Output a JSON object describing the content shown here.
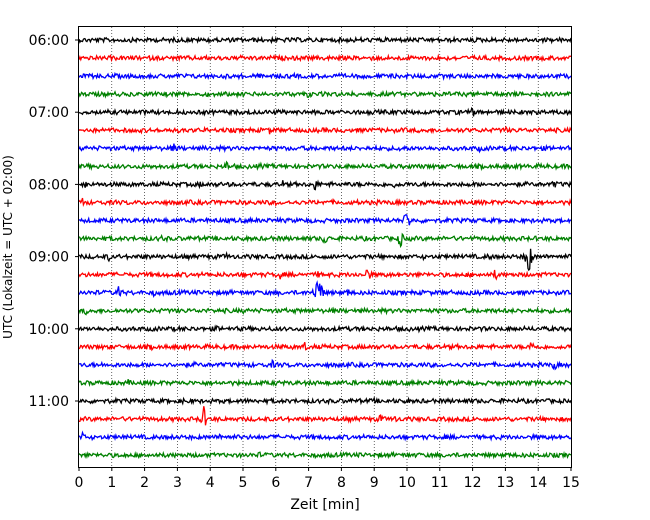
{
  "chart_data": {
    "type": "line",
    "xlabel": "Zeit  [min]",
    "ylabel": "UTC (Lokalzeit = UTC + 02:00)",
    "xlim": [
      0,
      15
    ],
    "x_ticks": [
      0,
      1,
      2,
      3,
      4,
      5,
      6,
      7,
      8,
      9,
      10,
      11,
      12,
      13,
      14,
      15
    ],
    "y_ticks": [
      "06:00",
      "07:00",
      "08:00",
      "09:00",
      "10:00",
      "11:00"
    ],
    "grid": "vertical-dotted",
    "trace_colors": [
      "#000000",
      "#ff0000",
      "#0000ff",
      "#008000"
    ],
    "traces": [
      {
        "start": "06:00",
        "color": "#000000",
        "events": [
          [
            4.0,
            4
          ],
          [
            6.3,
            3
          ],
          [
            13.0,
            3
          ]
        ]
      },
      {
        "start": "06:15",
        "color": "#ff0000",
        "events": [
          [
            10.2,
            4
          ],
          [
            7.8,
            3
          ],
          [
            3.0,
            3
          ]
        ]
      },
      {
        "start": "06:30",
        "color": "#0000ff",
        "events": [
          [
            4.0,
            3
          ],
          [
            9.5,
            3
          ],
          [
            11.5,
            3
          ]
        ]
      },
      {
        "start": "06:45",
        "color": "#008000",
        "events": [
          [
            7.0,
            6
          ],
          [
            12.0,
            3
          ],
          [
            3.0,
            3
          ]
        ]
      },
      {
        "start": "07:00",
        "color": "#000000",
        "events": [
          [
            12.0,
            6
          ],
          [
            2.0,
            3
          ],
          [
            8.5,
            3
          ]
        ]
      },
      {
        "start": "07:15",
        "color": "#ff0000",
        "events": [
          [
            1.8,
            4
          ],
          [
            5.8,
            5
          ],
          [
            13.0,
            5
          ]
        ]
      },
      {
        "start": "07:30",
        "color": "#0000ff",
        "events": [
          [
            2.9,
            7
          ],
          [
            4.0,
            4
          ],
          [
            9.8,
            6
          ],
          [
            12.2,
            4
          ]
        ]
      },
      {
        "start": "07:45",
        "color": "#008000",
        "events": [
          [
            4.5,
            6
          ],
          [
            5.5,
            5
          ],
          [
            9.0,
            3
          ]
        ]
      },
      {
        "start": "08:00",
        "color": "#000000",
        "events": [
          [
            0.2,
            5
          ],
          [
            3.7,
            4
          ],
          [
            6.2,
            5
          ],
          [
            7.2,
            8
          ],
          [
            9.6,
            4
          ],
          [
            14.5,
            6
          ]
        ]
      },
      {
        "start": "08:15",
        "color": "#ff0000",
        "events": [
          [
            0.1,
            6
          ],
          [
            1.5,
            3
          ],
          [
            6.0,
            3
          ]
        ]
      },
      {
        "start": "08:30",
        "color": "#0000ff",
        "events": [
          [
            10.0,
            14
          ],
          [
            2.0,
            3
          ],
          [
            14.0,
            3
          ]
        ]
      },
      {
        "start": "08:45",
        "color": "#008000",
        "events": [
          [
            2.5,
            5
          ],
          [
            7.5,
            8
          ],
          [
            9.8,
            10
          ],
          [
            11.5,
            3
          ]
        ]
      },
      {
        "start": "09:00",
        "color": "#000000",
        "events": [
          [
            0.9,
            5
          ],
          [
            4.5,
            4
          ],
          [
            12.5,
            6
          ],
          [
            13.7,
            22
          ],
          [
            10.5,
            3
          ]
        ]
      },
      {
        "start": "09:15",
        "color": "#ff0000",
        "events": [
          [
            6.1,
            8
          ],
          [
            7.3,
            4
          ],
          [
            8.8,
            10
          ],
          [
            12.7,
            7
          ],
          [
            3.0,
            3
          ]
        ]
      },
      {
        "start": "09:30",
        "color": "#0000ff",
        "events": [
          [
            1.2,
            9
          ],
          [
            2.3,
            5
          ],
          [
            3.0,
            4
          ],
          [
            7.3,
            26
          ],
          [
            8.2,
            5
          ],
          [
            8.2,
            5
          ]
        ]
      },
      {
        "start": "09:45",
        "color": "#008000",
        "events": [
          [
            0.2,
            5
          ],
          [
            5.0,
            3
          ],
          [
            11.0,
            3
          ]
        ]
      },
      {
        "start": "10:00",
        "color": "#000000",
        "events": [
          [
            4.2,
            4
          ],
          [
            10.0,
            4
          ],
          [
            8.0,
            3
          ]
        ]
      },
      {
        "start": "10:15",
        "color": "#ff0000",
        "events": [
          [
            2.2,
            4
          ],
          [
            6.9,
            6
          ],
          [
            13.8,
            8
          ]
        ]
      },
      {
        "start": "10:30",
        "color": "#0000ff",
        "events": [
          [
            5.9,
            5
          ],
          [
            14.5,
            6
          ],
          [
            3.5,
            3
          ]
        ]
      },
      {
        "start": "10:45",
        "color": "#008000",
        "events": [
          [
            1.5,
            4
          ],
          [
            6.0,
            3
          ],
          [
            11.0,
            3
          ]
        ]
      },
      {
        "start": "11:00",
        "color": "#000000",
        "events": [
          [
            3.2,
            4
          ],
          [
            9.0,
            3
          ],
          [
            12.5,
            3
          ]
        ]
      },
      {
        "start": "11:15",
        "color": "#ff0000",
        "events": [
          [
            3.8,
            14
          ],
          [
            9.2,
            6
          ],
          [
            9.6,
            6
          ],
          [
            14.0,
            4
          ]
        ]
      },
      {
        "start": "11:30",
        "color": "#0000ff",
        "events": [
          [
            0.1,
            6
          ],
          [
            4.3,
            5
          ],
          [
            7.2,
            3
          ]
        ]
      },
      {
        "start": "11:45",
        "color": "#008000",
        "events": [
          [
            5.5,
            4
          ],
          [
            10.0,
            3
          ],
          [
            13.0,
            3
          ]
        ]
      }
    ]
  }
}
